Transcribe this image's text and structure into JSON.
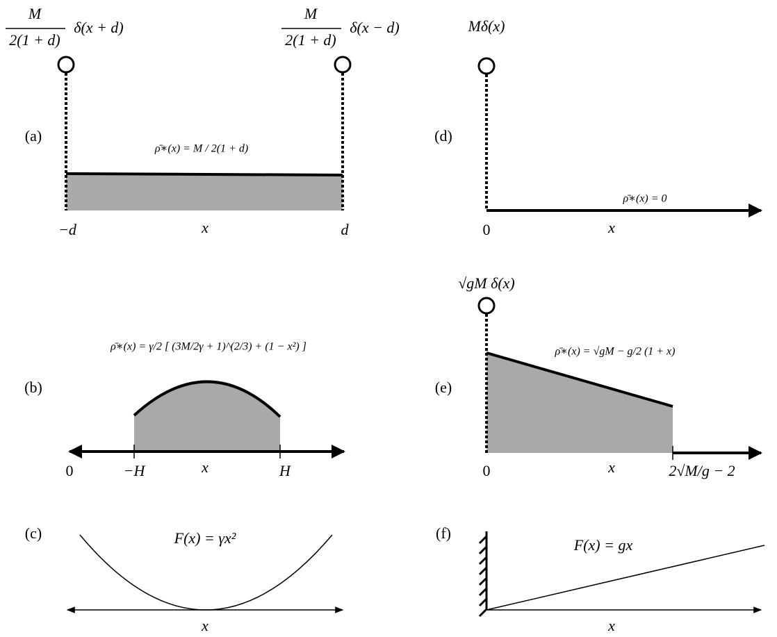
{
  "panels": {
    "a": {
      "label": "(a)",
      "left_num": "M",
      "left_den": "2(1 + d)",
      "left_rest": "δ(x + d)",
      "right_num": "M",
      "right_den": "2(1 + d)",
      "right_rest": "δ(x − d)",
      "density": "ρ̄∗(x) = M / 2(1 + d)",
      "x_left": "−d",
      "x_axis": "x",
      "x_right": "d"
    },
    "b": {
      "label": "(b)",
      "density": "ρ̄∗(x) = γ/2 [ (3M/2γ + 1)^(2/3) + (1 − x²) ]",
      "zero": "0",
      "x_left": "−H",
      "x_axis": "x",
      "x_right": "H"
    },
    "c": {
      "label": "(c)",
      "formula": "F(x) = γx²",
      "x_axis": "x"
    },
    "d": {
      "label": "(d)",
      "delta": "Mδ(x)",
      "density": "ρ̄∗(x) = 0",
      "zero": "0",
      "x_axis": "x"
    },
    "e": {
      "label": "(e)",
      "delta": "√gM δ(x)",
      "density": "ρ̄∗(x) = √gM − g/2 (1 + x)",
      "zero": "0",
      "x_axis": "x",
      "x_right": "2√M/g − 2"
    },
    "f": {
      "label": "(f)",
      "formula": "F(x) = gx",
      "x_axis": "x"
    }
  }
}
